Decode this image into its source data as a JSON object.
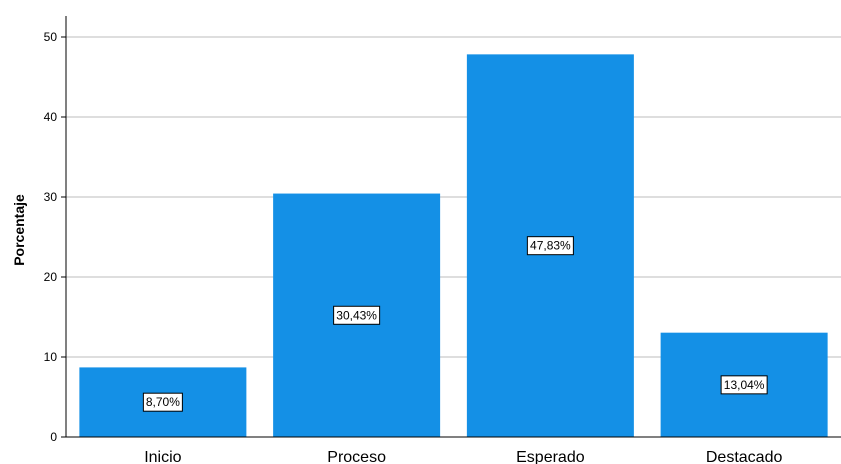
{
  "chart_data": {
    "type": "bar",
    "categories": [
      "Inicio",
      "Proceso",
      "Esperado",
      "Destacado"
    ],
    "values": [
      8.7,
      30.43,
      47.83,
      13.04
    ],
    "data_labels": [
      "8,70%",
      "30,43%",
      "47,83%",
      "13,04%"
    ],
    "title": "",
    "xlabel": "",
    "ylabel": "Porcentaje",
    "ylim": [
      0,
      50
    ],
    "yticks": [
      0,
      10,
      20,
      30,
      40,
      50
    ],
    "grid": true,
    "bar_color": "#1490E6",
    "grid_color": "#BEBEBE"
  }
}
